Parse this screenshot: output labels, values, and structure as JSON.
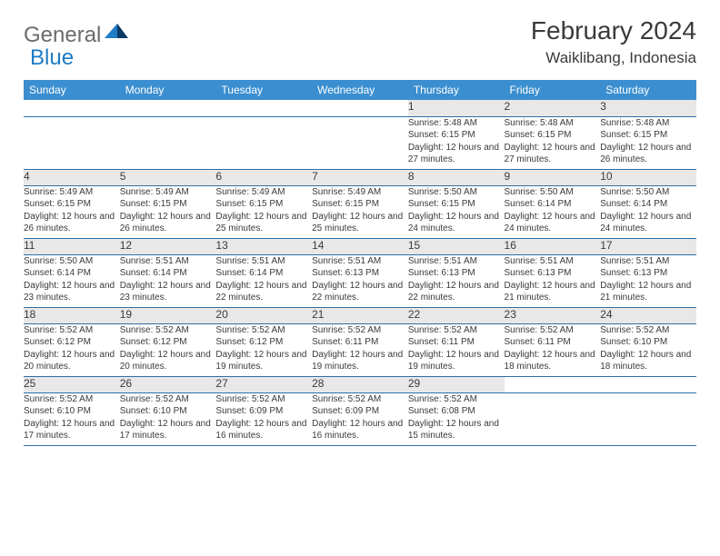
{
  "logo": {
    "text1": "General",
    "text2": "Blue"
  },
  "title": "February 2024",
  "location": "Waiklibang, Indonesia",
  "colors": {
    "header_bg": "#3b8fd0",
    "header_text": "#ffffff",
    "daynum_bg": "#e8e8e8",
    "border": "#2b6fa8",
    "text": "#3a3a3a",
    "logo_gray": "#6b6b6b",
    "logo_blue": "#1e7bc4"
  },
  "weekdays": [
    "Sunday",
    "Monday",
    "Tuesday",
    "Wednesday",
    "Thursday",
    "Friday",
    "Saturday"
  ],
  "weeks": [
    [
      null,
      null,
      null,
      null,
      {
        "n": "1",
        "sr": "5:48 AM",
        "ss": "6:15 PM",
        "dl": "12 hours and 27 minutes."
      },
      {
        "n": "2",
        "sr": "5:48 AM",
        "ss": "6:15 PM",
        "dl": "12 hours and 27 minutes."
      },
      {
        "n": "3",
        "sr": "5:48 AM",
        "ss": "6:15 PM",
        "dl": "12 hours and 26 minutes."
      }
    ],
    [
      {
        "n": "4",
        "sr": "5:49 AM",
        "ss": "6:15 PM",
        "dl": "12 hours and 26 minutes."
      },
      {
        "n": "5",
        "sr": "5:49 AM",
        "ss": "6:15 PM",
        "dl": "12 hours and 26 minutes."
      },
      {
        "n": "6",
        "sr": "5:49 AM",
        "ss": "6:15 PM",
        "dl": "12 hours and 25 minutes."
      },
      {
        "n": "7",
        "sr": "5:49 AM",
        "ss": "6:15 PM",
        "dl": "12 hours and 25 minutes."
      },
      {
        "n": "8",
        "sr": "5:50 AM",
        "ss": "6:15 PM",
        "dl": "12 hours and 24 minutes."
      },
      {
        "n": "9",
        "sr": "5:50 AM",
        "ss": "6:14 PM",
        "dl": "12 hours and 24 minutes."
      },
      {
        "n": "10",
        "sr": "5:50 AM",
        "ss": "6:14 PM",
        "dl": "12 hours and 24 minutes."
      }
    ],
    [
      {
        "n": "11",
        "sr": "5:50 AM",
        "ss": "6:14 PM",
        "dl": "12 hours and 23 minutes."
      },
      {
        "n": "12",
        "sr": "5:51 AM",
        "ss": "6:14 PM",
        "dl": "12 hours and 23 minutes."
      },
      {
        "n": "13",
        "sr": "5:51 AM",
        "ss": "6:14 PM",
        "dl": "12 hours and 22 minutes."
      },
      {
        "n": "14",
        "sr": "5:51 AM",
        "ss": "6:13 PM",
        "dl": "12 hours and 22 minutes."
      },
      {
        "n": "15",
        "sr": "5:51 AM",
        "ss": "6:13 PM",
        "dl": "12 hours and 22 minutes."
      },
      {
        "n": "16",
        "sr": "5:51 AM",
        "ss": "6:13 PM",
        "dl": "12 hours and 21 minutes."
      },
      {
        "n": "17",
        "sr": "5:51 AM",
        "ss": "6:13 PM",
        "dl": "12 hours and 21 minutes."
      }
    ],
    [
      {
        "n": "18",
        "sr": "5:52 AM",
        "ss": "6:12 PM",
        "dl": "12 hours and 20 minutes."
      },
      {
        "n": "19",
        "sr": "5:52 AM",
        "ss": "6:12 PM",
        "dl": "12 hours and 20 minutes."
      },
      {
        "n": "20",
        "sr": "5:52 AM",
        "ss": "6:12 PM",
        "dl": "12 hours and 19 minutes."
      },
      {
        "n": "21",
        "sr": "5:52 AM",
        "ss": "6:11 PM",
        "dl": "12 hours and 19 minutes."
      },
      {
        "n": "22",
        "sr": "5:52 AM",
        "ss": "6:11 PM",
        "dl": "12 hours and 19 minutes."
      },
      {
        "n": "23",
        "sr": "5:52 AM",
        "ss": "6:11 PM",
        "dl": "12 hours and 18 minutes."
      },
      {
        "n": "24",
        "sr": "5:52 AM",
        "ss": "6:10 PM",
        "dl": "12 hours and 18 minutes."
      }
    ],
    [
      {
        "n": "25",
        "sr": "5:52 AM",
        "ss": "6:10 PM",
        "dl": "12 hours and 17 minutes."
      },
      {
        "n": "26",
        "sr": "5:52 AM",
        "ss": "6:10 PM",
        "dl": "12 hours and 17 minutes."
      },
      {
        "n": "27",
        "sr": "5:52 AM",
        "ss": "6:09 PM",
        "dl": "12 hours and 16 minutes."
      },
      {
        "n": "28",
        "sr": "5:52 AM",
        "ss": "6:09 PM",
        "dl": "12 hours and 16 minutes."
      },
      {
        "n": "29",
        "sr": "5:52 AM",
        "ss": "6:08 PM",
        "dl": "12 hours and 15 minutes."
      },
      null,
      null
    ]
  ],
  "labels": {
    "sunrise": "Sunrise:",
    "sunset": "Sunset:",
    "daylight": "Daylight:"
  }
}
